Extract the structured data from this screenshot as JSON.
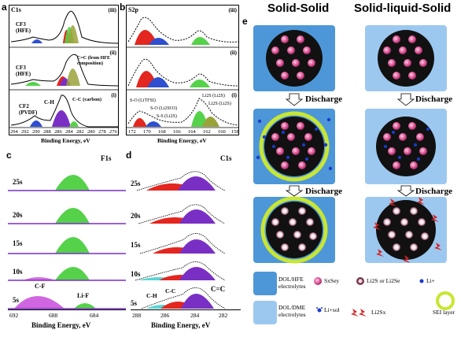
{
  "panel_a": {
    "label": "a",
    "corner": "C1s",
    "rows": [
      {
        "tag": "(iii)",
        "peaks": [
          "CF3\n(HFE)"
        ]
      },
      {
        "tag": "(ii)",
        "peaks": [
          "CF3\n(HFE)",
          "C=C (from HFE\ncomposition)"
        ]
      },
      {
        "tag": "(i)",
        "peaks": [
          "CF2\n(PVDF)",
          "C-H",
          "C-C (carbon)"
        ]
      }
    ],
    "ticks": [
      "294",
      "292",
      "290",
      "288",
      "286",
      "284",
      "282",
      "280",
      "278",
      "276"
    ],
    "xlabel": "Binding Energy, eV"
  },
  "panel_b": {
    "label": "b",
    "corner": "S2p",
    "row_tags": [
      "(iii)",
      "(ii)",
      "(i)"
    ],
    "peaks": [
      "S-O (LiTFSI)",
      "S-O (Li2SO3)",
      "S-S (Li2S)",
      "Li2S (Li2S)",
      "Li2S (Li2S)"
    ],
    "ticks": [
      "172",
      "170",
      "168",
      "166",
      "164",
      "162",
      "160",
      "158"
    ],
    "xlabel": "Binding Energy, eV"
  },
  "panel_c": {
    "label": "c",
    "corner": "F1s",
    "times": [
      "25s",
      "20s",
      "15s",
      "10s",
      "5s"
    ],
    "peaks": [
      "C-F",
      "Li-F"
    ],
    "ticks": [
      "692",
      "688",
      "684"
    ],
    "xlabel": "Binding Energy, eV"
  },
  "panel_d": {
    "label": "d",
    "corner": "C1s",
    "times": [
      "25s",
      "20s",
      "15s",
      "10s",
      "5s"
    ],
    "peaks": [
      "C-H",
      "C-C",
      "C=C"
    ],
    "ticks": [
      "288",
      "286",
      "284",
      "282"
    ],
    "xlabel": "Binding Energy, eV"
  },
  "panel_e": {
    "label": "e",
    "title_left": "Solid-Solid",
    "title_right": "Solid-liquid-Solid",
    "step": "Discharge",
    "legend": {
      "dol_hfe": "DOL/HFE\nelectrolytes",
      "dol_dme": "DOL/DME\nelectrolytes",
      "sxsey": "SxSey",
      "li2s": "Li2S or Li2Se",
      "li_ion": "Li+",
      "li_sol": "Li+sol",
      "li2sx": "Li2Sx",
      "sei": "SEI layer"
    }
  },
  "colors": {
    "box_dark": "#4d97d8",
    "box_light": "#9cc8f0",
    "core": "#111111",
    "particle": "#e05a9a",
    "sei": "#c8e632",
    "green": "#55d24a",
    "red": "#e3261f",
    "purple": "#7a2fc4",
    "blue": "#2f4fd0",
    "olive": "#9aa23a"
  }
}
